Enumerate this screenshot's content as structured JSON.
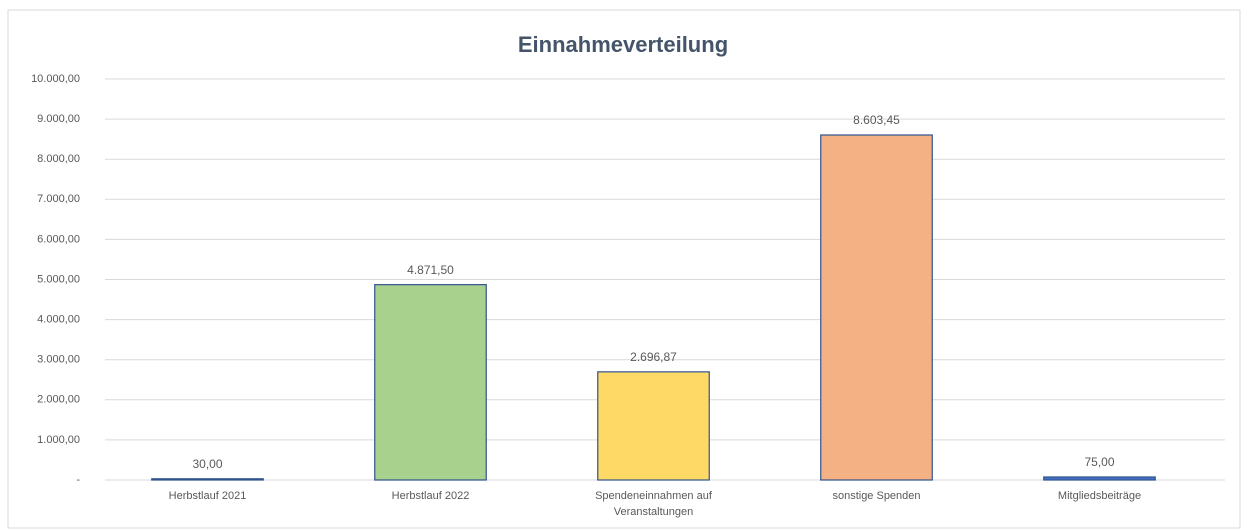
{
  "chart_data": {
    "type": "bar",
    "title": "Einnahmeverteilung",
    "categories": [
      "Herbstlauf 2021",
      "Herbstlauf 2022",
      "Spendeneinnahmen auf Veranstaltungen",
      "sonstige Spenden",
      "Mitgliedsbeiträge"
    ],
    "values": [
      30,
      4871.5,
      2696.87,
      8603.45,
      75
    ],
    "value_labels": [
      "30,00",
      "4.871,50",
      "2.696,87",
      "8.603,45",
      "75,00"
    ],
    "colors": [
      "#4472c4",
      "#a9d18e",
      "#ffd966",
      "#f4b183",
      "#4472c4"
    ],
    "ylim": [
      0,
      10000
    ],
    "yticks": [
      {
        "value": 0,
        "label": "-"
      },
      {
        "value": 1000,
        "label": "1.000,00"
      },
      {
        "value": 2000,
        "label": "2.000,00"
      },
      {
        "value": 3000,
        "label": "3.000,00"
      },
      {
        "value": 4000,
        "label": "4.000,00"
      },
      {
        "value": 5000,
        "label": "5.000,00"
      },
      {
        "value": 6000,
        "label": "6.000,00"
      },
      {
        "value": 7000,
        "label": "7.000,00"
      },
      {
        "value": 8000,
        "label": "8.000,00"
      },
      {
        "value": 9000,
        "label": "9.000,00"
      },
      {
        "value": 10000,
        "label": "10.000,00"
      }
    ],
    "grid": true
  }
}
